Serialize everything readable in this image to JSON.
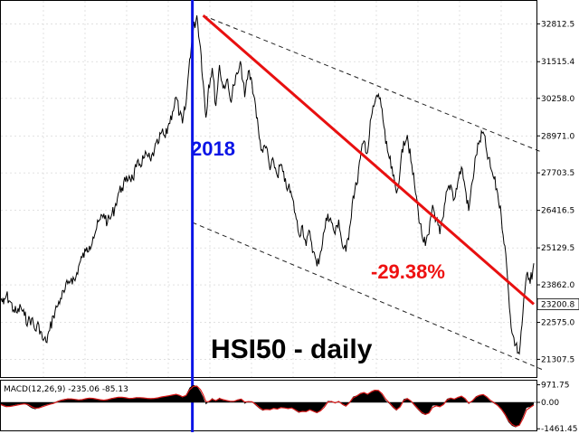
{
  "chart_data": {
    "type": "line",
    "title": "HSI50 - daily",
    "annotations": {
      "year_marker": "2018",
      "decline": "-29.38%"
    },
    "price_axis": {
      "ticks": [
        32812.5,
        31515.4,
        30258.0,
        28971.0,
        27703.5,
        26416.5,
        25129.5,
        23862.0,
        22575.0,
        21307.5
      ],
      "tick_labels": [
        "32812.5",
        "31515.4",
        "30258.0",
        "28971.0",
        "27703.5",
        "26416.5",
        "25129.5",
        "23862.0",
        "22575.0",
        "21307.5"
      ],
      "current_label": "23200.8",
      "ylim": [
        20700,
        33600
      ]
    },
    "price_series": {
      "t": [
        0,
        3,
        6,
        10,
        14,
        18,
        22,
        26,
        30,
        34,
        38,
        42,
        46,
        50,
        54,
        58,
        62,
        66,
        70,
        74,
        78,
        82,
        86,
        90,
        94,
        98,
        102,
        106,
        110,
        114,
        118,
        122,
        126,
        130,
        134,
        138,
        142,
        146,
        150,
        154,
        158,
        162,
        166,
        170,
        174,
        178,
        182,
        186,
        190,
        194,
        198,
        201,
        205,
        209,
        213,
        217,
        221,
        224,
        227,
        230,
        234,
        238,
        242,
        246,
        250,
        254,
        258,
        262,
        266,
        270,
        274,
        278,
        282,
        286,
        290,
        294,
        298,
        302,
        306,
        310,
        314,
        318,
        322,
        326,
        330,
        334,
        338,
        342,
        346,
        350,
        354,
        358,
        362,
        366,
        370,
        374,
        378,
        382,
        386,
        390,
        394,
        398,
        402,
        406,
        410,
        414,
        418,
        422,
        426,
        430,
        434,
        438,
        442,
        446,
        450,
        454,
        458,
        462,
        466,
        470,
        474,
        478,
        482,
        486,
        490,
        494,
        498,
        502,
        506,
        510,
        514,
        518,
        522,
        526,
        530,
        534,
        538,
        542,
        546,
        550,
        554,
        558,
        562,
        566,
        570,
        574,
        578,
        582,
        586,
        590
      ],
      "v": [
        23400,
        23200,
        23500,
        23300,
        23000,
        22900,
        23100,
        22800,
        22600,
        22700,
        22300,
        22500,
        22000,
        21900,
        22300,
        22800,
        23100,
        23400,
        23600,
        23900,
        24100,
        24000,
        24500,
        24800,
        25000,
        25200,
        25500,
        25800,
        26100,
        26300,
        26000,
        26200,
        26500,
        27000,
        27200,
        27400,
        27600,
        27500,
        27900,
        28000,
        28200,
        28300,
        28100,
        28500,
        28700,
        29100,
        28900,
        29400,
        29800,
        30300,
        29700,
        29400,
        30100,
        31600,
        32600,
        33100,
        32000,
        30800,
        29600,
        30700,
        31300,
        30000,
        31400,
        30600,
        30900,
        30200,
        30700,
        31100,
        31400,
        30300,
        31200,
        30800,
        30000,
        28900,
        28400,
        28600,
        27800,
        28100,
        27600,
        28000,
        27400,
        27200,
        26900,
        26300,
        25600,
        25900,
        25200,
        25700,
        25000,
        24500,
        25000,
        25700,
        26300,
        26000,
        25600,
        26100,
        25200,
        25000,
        25800,
        26900,
        27300,
        28200,
        28800,
        28400,
        29600,
        30100,
        30400,
        29900,
        28700,
        28200,
        27600,
        27000,
        27800,
        28800,
        29000,
        28100,
        27300,
        26400,
        25600,
        25200,
        25600,
        26600,
        26100,
        25600,
        26200,
        27100,
        27300,
        26800,
        27400,
        27900,
        27200,
        26400,
        27400,
        28300,
        28800,
        29100,
        28400,
        27900,
        27500,
        27000,
        26200,
        25200,
        23600,
        22200,
        21800,
        21500,
        22900,
        24200,
        23900,
        24600,
        23300,
        23200
      ]
    },
    "trend_line": {
      "from": [
        224,
        33100
      ],
      "to": [
        590,
        23200
      ],
      "color": "#e81010"
    },
    "channel_upper": {
      "from": [
        224,
        33100
      ],
      "to": [
        600,
        28400
      ]
    },
    "channel_lower": {
      "from": [
        212,
        26000
      ],
      "to": [
        600,
        20950
      ]
    },
    "year_marker_t": 212,
    "macd": {
      "label": "MACD(12,26,9) -235.06 -85.13",
      "ticks": [
        971.75,
        0.0,
        -1461.45
      ],
      "tick_labels": [
        "971.75",
        "0.00",
        "-1461.45"
      ],
      "ylim": [
        -1550,
        1200
      ],
      "hist": [
        -150,
        -220,
        -260,
        -210,
        -160,
        -120,
        -90,
        -60,
        -180,
        -320,
        -380,
        -300,
        -200,
        -140,
        -80,
        -40,
        60,
        140,
        180,
        210,
        190,
        150,
        120,
        160,
        220,
        250,
        210,
        160,
        130,
        110,
        170,
        230,
        260,
        300,
        280,
        240,
        200,
        230,
        280,
        260,
        240,
        210,
        200,
        230,
        260,
        320,
        340,
        380,
        420,
        460,
        360,
        280,
        420,
        820,
        960,
        900,
        600,
        300,
        -120,
        40,
        240,
        60,
        260,
        120,
        80,
        40,
        60,
        160,
        200,
        -80,
        60,
        20,
        -160,
        -340,
        -460,
        -380,
        -420,
        -300,
        -380,
        -260,
        -320,
        -360,
        -300,
        -460,
        -580,
        -480,
        -520,
        -380,
        -520,
        -600,
        -420,
        -200,
        80,
        60,
        -60,
        80,
        -140,
        -240,
        20,
        320,
        380,
        520,
        560,
        420,
        620,
        700,
        660,
        420,
        100,
        -80,
        -300,
        -460,
        -200,
        180,
        240,
        40,
        -200,
        -420,
        -620,
        -700,
        -560,
        -180,
        -160,
        -260,
        -80,
        200,
        260,
        160,
        300,
        360,
        160,
        -100,
        120,
        340,
        420,
        440,
        260,
        60,
        -60,
        -200,
        -420,
        -720,
        -1100,
        -1300,
        -1380,
        -1250,
        -800,
        -300,
        -250,
        -120,
        -220,
        -235
      ],
      "signal": [
        -120,
        -180,
        -230,
        -225,
        -190,
        -150,
        -110,
        -80,
        -120,
        -240,
        -320,
        -310,
        -240,
        -170,
        -110,
        -60,
        20,
        100,
        150,
        190,
        190,
        165,
        135,
        150,
        200,
        235,
        220,
        180,
        145,
        120,
        150,
        205,
        245,
        280,
        280,
        255,
        215,
        225,
        260,
        260,
        245,
        220,
        205,
        220,
        250,
        300,
        330,
        365,
        405,
        445,
        385,
        310,
        380,
        700,
        880,
        900,
        700,
        420,
        40,
        40,
        180,
        100,
        210,
        150,
        100,
        60,
        60,
        130,
        180,
        20,
        40,
        30,
        -100,
        -280,
        -410,
        -390,
        -410,
        -330,
        -370,
        -290,
        -310,
        -345,
        -310,
        -420,
        -540,
        -500,
        -515,
        -410,
        -490,
        -570,
        -460,
        -270,
        20,
        50,
        -30,
        50,
        -100,
        -200,
        -20,
        250,
        350,
        480,
        540,
        450,
        580,
        670,
        660,
        480,
        180,
        -20,
        -240,
        -410,
        -250,
        100,
        210,
        80,
        -140,
        -360,
        -560,
        -670,
        -590,
        -280,
        -190,
        -240,
        -120,
        140,
        230,
        180,
        270,
        340,
        210,
        -40,
        80,
        290,
        390,
        430,
        300,
        110,
        -20,
        -160,
        -370,
        -650,
        -1000,
        -1220,
        -1330,
        -1270,
        -900,
        -420,
        -280,
        -150,
        -200,
        -85
      ]
    },
    "colors": {
      "price_line": "#000000",
      "year_marker": "#0a14e6",
      "trend": "#e81010",
      "channel": "#222222",
      "macd_hist": "#000000",
      "macd_signal": "#d81818",
      "axis": "#000000",
      "grid": "#d0d0d0"
    },
    "grid": true
  }
}
